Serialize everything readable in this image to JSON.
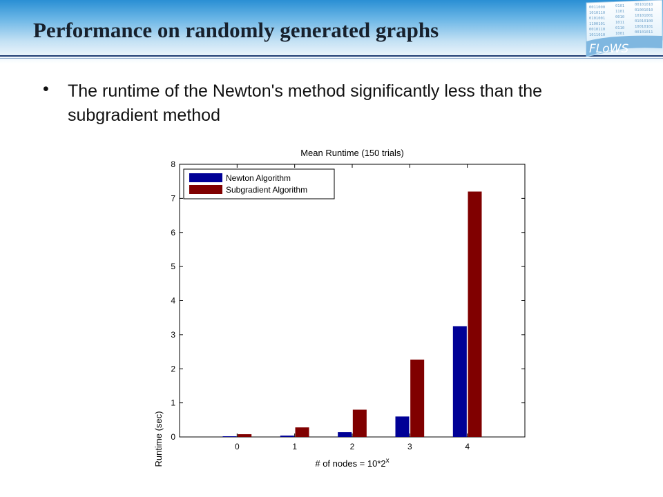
{
  "slide": {
    "title": "Performance on randomly generated graphs",
    "logo_text": "FLoWS",
    "bullet": "The runtime of the Newton's method significantly less than the subgradient method"
  },
  "colors": {
    "header_accent": "#1f3d73",
    "newton": "#000096",
    "subgradient": "#800000"
  },
  "chart_data": {
    "type": "bar",
    "title": "Mean Runtime (150 trials)",
    "xlabel": "# of nodes = 10*2",
    "xlabel_superscript": "x",
    "ylabel": "Runtime (sec)",
    "categories": [
      "0",
      "1",
      "2",
      "3",
      "4"
    ],
    "ylim": [
      0,
      8
    ],
    "yticks": [
      "0",
      "1",
      "2",
      "3",
      "4",
      "5",
      "6",
      "7",
      "8"
    ],
    "xlim": [
      -1,
      5
    ],
    "grid": false,
    "legend_position": "top-left",
    "series": [
      {
        "name": "Newton Algorithm",
        "color": "#000096",
        "values": [
          0.02,
          0.04,
          0.14,
          0.6,
          3.25
        ]
      },
      {
        "name": "Subgradient Algorithm",
        "color": "#800000",
        "values": [
          0.08,
          0.28,
          0.8,
          2.27,
          7.2
        ]
      }
    ]
  }
}
